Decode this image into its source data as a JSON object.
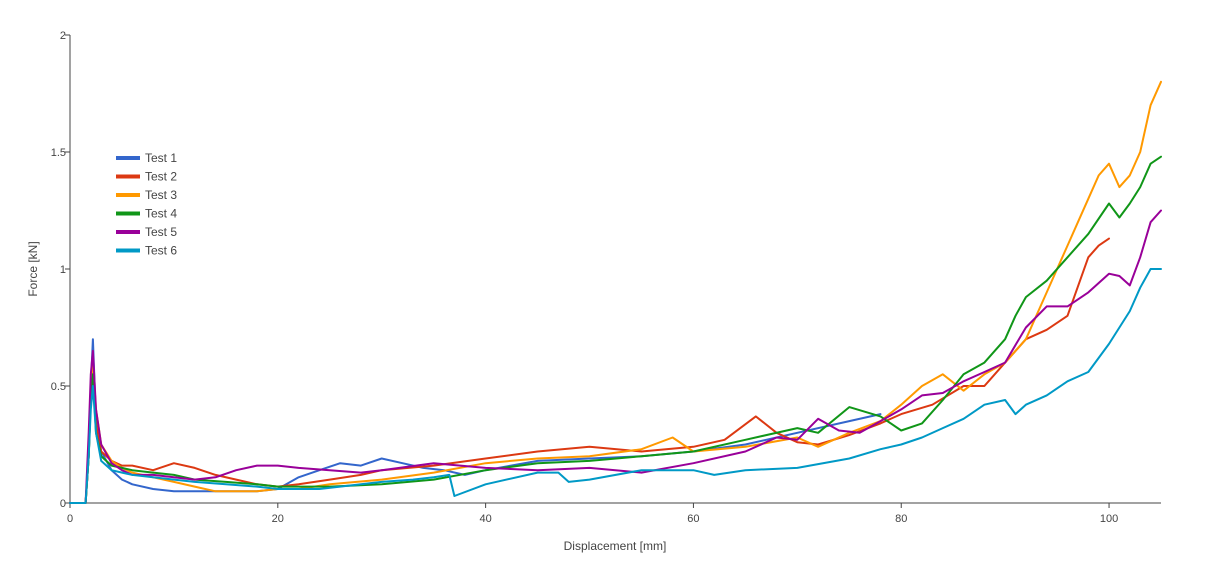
{
  "chart_data": {
    "type": "line",
    "title": "",
    "xlabel": "Displacement [mm]",
    "ylabel": "Force [kN]",
    "xlim": [
      0,
      105
    ],
    "ylim": [
      0,
      2
    ],
    "xticks": [
      0,
      20,
      40,
      60,
      80,
      100
    ],
    "yticks": [
      0,
      0.5,
      1,
      1.5,
      2
    ],
    "xtick_labels": [
      "0",
      "20",
      "40",
      "60",
      "80",
      "100"
    ],
    "ytick_labels": [
      "0",
      "0.5",
      "1",
      "1.5",
      "2"
    ],
    "grid": false,
    "legend_position": "left",
    "series": [
      {
        "name": "Test 1",
        "color": "#3366cc",
        "x": [
          0,
          1.5,
          1.8,
          2.0,
          2.2,
          2.5,
          3,
          4,
          5,
          6,
          8,
          10,
          12,
          15,
          18,
          20,
          22,
          24,
          26,
          28,
          30,
          32,
          34,
          36,
          38,
          40,
          45,
          50,
          55,
          60,
          65,
          70,
          75,
          78
        ],
        "y": [
          0,
          0,
          0.2,
          0.5,
          0.7,
          0.35,
          0.22,
          0.14,
          0.1,
          0.08,
          0.06,
          0.05,
          0.05,
          0.05,
          0.05,
          0.06,
          0.11,
          0.14,
          0.17,
          0.16,
          0.19,
          0.17,
          0.15,
          0.14,
          0.12,
          0.14,
          0.18,
          0.19,
          0.2,
          0.22,
          0.25,
          0.3,
          0.35,
          0.38
        ]
      },
      {
        "name": "Test 2",
        "color": "#dc3912",
        "x": [
          0,
          1.5,
          1.8,
          2.0,
          2.2,
          2.5,
          3,
          4,
          5,
          6,
          8,
          10,
          12,
          14,
          16,
          18,
          20,
          22,
          25,
          28,
          30,
          35,
          40,
          45,
          50,
          55,
          60,
          63,
          66,
          68,
          70,
          72,
          75,
          78,
          80,
          83,
          86,
          88,
          90,
          92,
          94,
          96,
          98,
          99,
          100
        ],
        "y": [
          0,
          0,
          0.2,
          0.45,
          0.6,
          0.35,
          0.22,
          0.18,
          0.16,
          0.16,
          0.14,
          0.17,
          0.15,
          0.12,
          0.1,
          0.08,
          0.07,
          0.08,
          0.1,
          0.12,
          0.14,
          0.16,
          0.19,
          0.22,
          0.24,
          0.22,
          0.24,
          0.27,
          0.37,
          0.3,
          0.26,
          0.25,
          0.29,
          0.34,
          0.38,
          0.42,
          0.5,
          0.5,
          0.6,
          0.7,
          0.74,
          0.8,
          1.05,
          1.1,
          1.13
        ]
      },
      {
        "name": "Test 3",
        "color": "#ff9900",
        "x": [
          0,
          1.5,
          1.8,
          2.0,
          2.2,
          2.5,
          3,
          4,
          5,
          6,
          8,
          10,
          12,
          14,
          16,
          18,
          20,
          22,
          25,
          30,
          35,
          40,
          45,
          50,
          55,
          58,
          60,
          65,
          70,
          72,
          75,
          78,
          80,
          82,
          84,
          86,
          88,
          90,
          92,
          94,
          96,
          97,
          98,
          99,
          100,
          101,
          102,
          103,
          104,
          105
        ],
        "y": [
          0,
          0,
          0.2,
          0.45,
          0.6,
          0.4,
          0.25,
          0.18,
          0.15,
          0.13,
          0.11,
          0.09,
          0.07,
          0.05,
          0.05,
          0.05,
          0.06,
          0.06,
          0.08,
          0.1,
          0.13,
          0.17,
          0.19,
          0.2,
          0.23,
          0.28,
          0.22,
          0.24,
          0.28,
          0.24,
          0.3,
          0.35,
          0.42,
          0.5,
          0.55,
          0.48,
          0.55,
          0.6,
          0.7,
          0.9,
          1.1,
          1.2,
          1.3,
          1.4,
          1.45,
          1.35,
          1.4,
          1.5,
          1.7,
          1.8
        ]
      },
      {
        "name": "Test 4",
        "color": "#109618",
        "x": [
          0,
          1.5,
          1.8,
          2.0,
          2.2,
          2.5,
          3,
          4,
          5,
          6,
          8,
          10,
          12,
          15,
          18,
          20,
          22,
          25,
          30,
          35,
          40,
          45,
          50,
          55,
          60,
          65,
          70,
          72,
          75,
          78,
          80,
          82,
          84,
          86,
          88,
          90,
          91,
          92,
          94,
          96,
          98,
          100,
          101,
          102,
          103,
          104,
          105
        ],
        "y": [
          0,
          0,
          0.2,
          0.45,
          0.55,
          0.3,
          0.2,
          0.16,
          0.15,
          0.14,
          0.13,
          0.12,
          0.1,
          0.09,
          0.08,
          0.07,
          0.07,
          0.07,
          0.08,
          0.1,
          0.14,
          0.17,
          0.18,
          0.2,
          0.22,
          0.27,
          0.32,
          0.3,
          0.41,
          0.37,
          0.31,
          0.34,
          0.44,
          0.55,
          0.6,
          0.7,
          0.8,
          0.88,
          0.95,
          1.05,
          1.15,
          1.28,
          1.22,
          1.28,
          1.35,
          1.45,
          1.48
        ]
      },
      {
        "name": "Test 5",
        "color": "#990099",
        "x": [
          0,
          1.5,
          1.8,
          2.0,
          2.2,
          2.5,
          3,
          4,
          5,
          6,
          8,
          10,
          12,
          14,
          16,
          18,
          20,
          22,
          25,
          28,
          30,
          35,
          40,
          45,
          50,
          55,
          60,
          65,
          68,
          70,
          72,
          74,
          76,
          78,
          80,
          82,
          84,
          86,
          88,
          90,
          92,
          94,
          96,
          98,
          100,
          101,
          102,
          103,
          104,
          105
        ],
        "y": [
          0,
          0,
          0.3,
          0.55,
          0.65,
          0.4,
          0.25,
          0.17,
          0.14,
          0.12,
          0.12,
          0.11,
          0.1,
          0.11,
          0.14,
          0.16,
          0.16,
          0.15,
          0.14,
          0.13,
          0.14,
          0.17,
          0.15,
          0.14,
          0.15,
          0.13,
          0.17,
          0.22,
          0.28,
          0.27,
          0.36,
          0.31,
          0.3,
          0.35,
          0.4,
          0.46,
          0.47,
          0.52,
          0.56,
          0.6,
          0.75,
          0.84,
          0.84,
          0.9,
          0.98,
          0.97,
          0.93,
          1.05,
          1.2,
          1.25
        ]
      },
      {
        "name": "Test 6",
        "color": "#0099c6",
        "x": [
          0,
          1.5,
          1.8,
          2.0,
          2.2,
          2.5,
          3,
          4,
          5,
          6,
          8,
          10,
          12,
          15,
          18,
          20,
          22,
          24,
          26,
          28,
          30,
          33,
          35,
          36.5,
          37,
          40,
          45,
          47,
          48,
          50,
          55,
          60,
          62,
          65,
          70,
          75,
          78,
          80,
          82,
          84,
          86,
          88,
          90,
          91,
          92,
          94,
          96,
          98,
          100,
          102,
          103,
          104,
          105
        ],
        "y": [
          0,
          0,
          0.2,
          0.4,
          0.5,
          0.3,
          0.18,
          0.14,
          0.13,
          0.12,
          0.11,
          0.1,
          0.09,
          0.08,
          0.07,
          0.06,
          0.06,
          0.06,
          0.07,
          0.08,
          0.09,
          0.1,
          0.11,
          0.12,
          0.03,
          0.08,
          0.13,
          0.13,
          0.09,
          0.1,
          0.14,
          0.14,
          0.12,
          0.14,
          0.15,
          0.19,
          0.23,
          0.25,
          0.28,
          0.32,
          0.36,
          0.42,
          0.44,
          0.38,
          0.42,
          0.46,
          0.52,
          0.56,
          0.68,
          0.82,
          0.92,
          1.0,
          1.0
        ]
      }
    ]
  }
}
